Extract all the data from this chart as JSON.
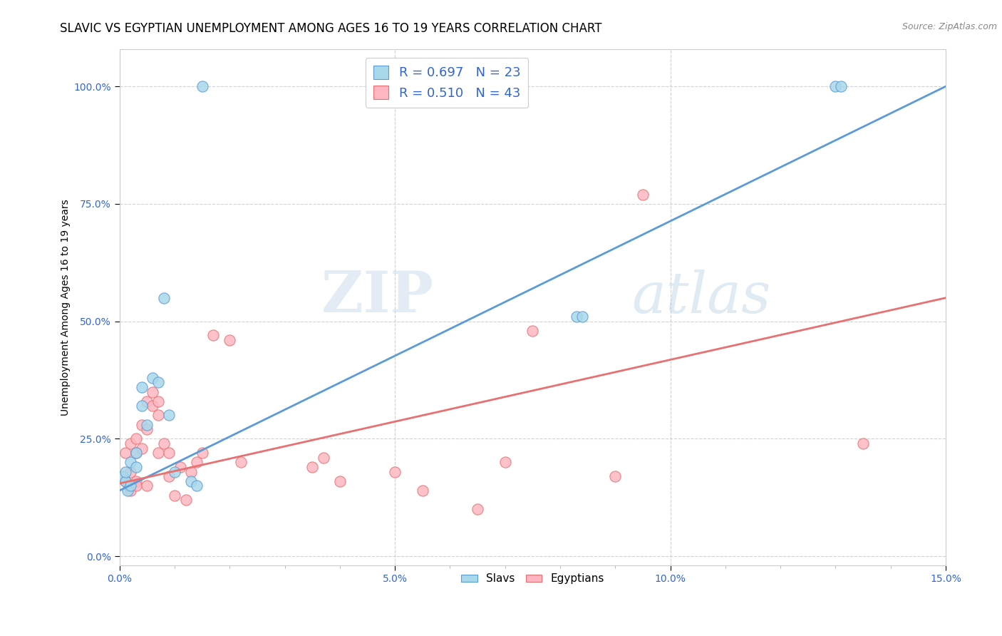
{
  "title": "SLAVIC VS EGYPTIAN UNEMPLOYMENT AMONG AGES 16 TO 19 YEARS CORRELATION CHART",
  "source": "Source: ZipAtlas.com",
  "xlabel": "",
  "ylabel": "Unemployment Among Ages 16 to 19 years",
  "xlim": [
    0.0,
    0.15
  ],
  "ylim": [
    -0.02,
    1.08
  ],
  "x_ticks": [
    0.0,
    0.025,
    0.05,
    0.075,
    0.1,
    0.125,
    0.15
  ],
  "y_ticks": [
    0.0,
    0.25,
    0.5,
    0.75,
    1.0
  ],
  "slavs_x": [
    0.0005,
    0.001,
    0.001,
    0.0015,
    0.002,
    0.002,
    0.003,
    0.003,
    0.004,
    0.004,
    0.005,
    0.006,
    0.007,
    0.008,
    0.009,
    0.01,
    0.013,
    0.014,
    0.015,
    0.083,
    0.084,
    0.13,
    0.131
  ],
  "slavs_y": [
    0.17,
    0.16,
    0.18,
    0.14,
    0.15,
    0.2,
    0.22,
    0.19,
    0.32,
    0.36,
    0.28,
    0.38,
    0.37,
    0.55,
    0.3,
    0.18,
    0.16,
    0.15,
    1.0,
    0.51,
    0.51,
    1.0,
    1.0
  ],
  "egyptians_x": [
    0.0005,
    0.001,
    0.001,
    0.002,
    0.002,
    0.002,
    0.003,
    0.003,
    0.003,
    0.003,
    0.004,
    0.004,
    0.005,
    0.005,
    0.005,
    0.006,
    0.006,
    0.007,
    0.007,
    0.007,
    0.008,
    0.009,
    0.009,
    0.01,
    0.011,
    0.012,
    0.013,
    0.014,
    0.015,
    0.017,
    0.02,
    0.022,
    0.035,
    0.037,
    0.04,
    0.05,
    0.055,
    0.065,
    0.07,
    0.075,
    0.09,
    0.095,
    0.135
  ],
  "egyptians_y": [
    0.17,
    0.16,
    0.22,
    0.14,
    0.18,
    0.24,
    0.22,
    0.25,
    0.16,
    0.15,
    0.23,
    0.28,
    0.15,
    0.27,
    0.33,
    0.32,
    0.35,
    0.3,
    0.33,
    0.22,
    0.24,
    0.17,
    0.22,
    0.13,
    0.19,
    0.12,
    0.18,
    0.2,
    0.22,
    0.47,
    0.46,
    0.2,
    0.19,
    0.21,
    0.16,
    0.18,
    0.14,
    0.1,
    0.2,
    0.48,
    0.17,
    0.77,
    0.24
  ],
  "slavs_line_x0": 0.0,
  "slavs_line_y0": 0.14,
  "slavs_line_x1": 0.15,
  "slavs_line_y1": 1.0,
  "egyptians_line_x0": 0.0,
  "egyptians_line_y0": 0.155,
  "egyptians_line_x1": 0.15,
  "egyptians_line_y1": 0.55,
  "slavs_color": "#a8d8ea",
  "egyptians_color": "#ffb6c1",
  "slavs_line_color": "#5b9bd5",
  "egyptians_line_color": "#e87070",
  "R_slavs": 0.697,
  "N_slavs": 23,
  "R_egyptians": 0.51,
  "N_egyptians": 43,
  "legend_text_color": "#3366cc",
  "title_fontsize": 12,
  "axis_label_fontsize": 10,
  "tick_fontsize": 10,
  "watermark_zip": "ZIP",
  "watermark_atlas": "atlas",
  "background_color": "#ffffff"
}
